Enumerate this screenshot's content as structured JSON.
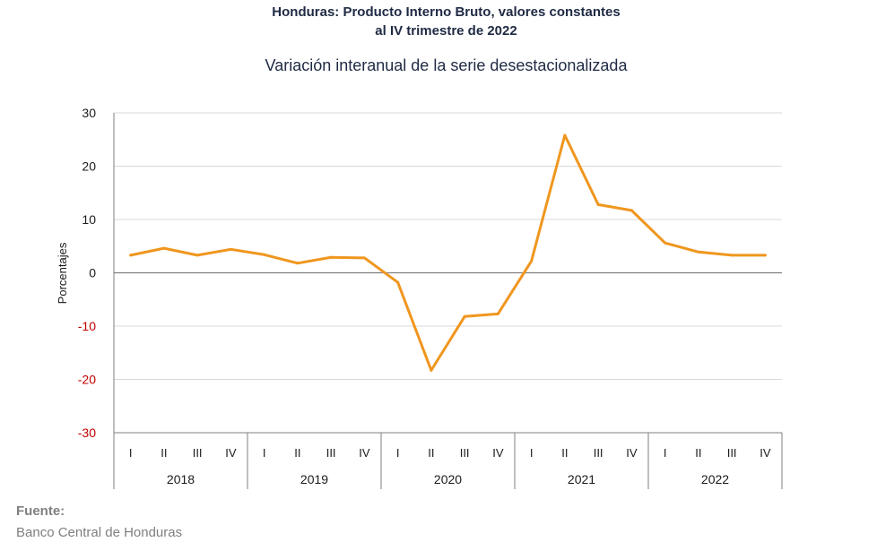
{
  "header": {
    "title_line1": "Honduras: Producto Interno Bruto, valores constantes",
    "title_line2": "al IV trimestre de 2022",
    "subtitle": "Variación interanual de la serie desestacionalizada"
  },
  "footer": {
    "source_label": "Fuente:",
    "source_text": "Banco Central de Honduras"
  },
  "colors": {
    "line": "#f0961e",
    "negative_tick": "#c00000",
    "grid": "#d9d9d9",
    "axis": "#7f7f7f"
  },
  "chart_data": {
    "type": "line",
    "title": "Honduras: Producto Interno Bruto, valores constantes al IV trimestre de 2022",
    "subtitle": "Variación interanual de la serie desestacionalizada",
    "xlabel": "",
    "ylabel": "Porcentajes",
    "ylim": [
      -30,
      30
    ],
    "yticks": [
      30,
      20,
      10,
      0,
      -10,
      -20,
      -30
    ],
    "grid": true,
    "legend": "none",
    "years": [
      "2018",
      "2019",
      "2020",
      "2021",
      "2022"
    ],
    "quarters": [
      "I",
      "II",
      "III",
      "IV"
    ],
    "series": [
      {
        "values": [
          3.3,
          4.6,
          3.3,
          4.4,
          3.4,
          1.8,
          2.9,
          2.8,
          -1.8,
          -18.3,
          -8.2,
          -7.7,
          2.2,
          25.8,
          12.8,
          11.7,
          5.6,
          3.9,
          3.3,
          3.3
        ]
      }
    ]
  }
}
